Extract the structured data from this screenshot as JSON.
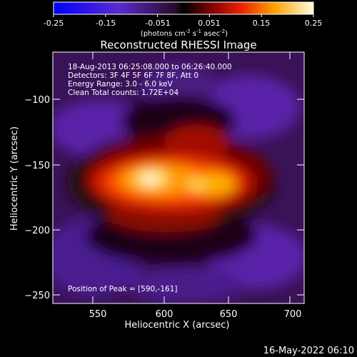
{
  "colorbar": {
    "ticks": [
      "-0.25",
      "-0.15",
      "-0.051",
      "0.051",
      "0.15",
      "0.25"
    ],
    "unit_main": "(photons cm",
    "unit_exp1": "-2",
    "unit_s": " s",
    "unit_exp2": "-1",
    "unit_asec": " asec",
    "unit_exp3": "-2",
    "unit_close": ")",
    "range": [
      -0.25,
      0.25
    ]
  },
  "title": "Reconstructed RHESSI Image",
  "info": {
    "line1": "18-Aug-2013 06:25:08.000 to 06:26:40.000",
    "line2": "Detectors: 3F 4F 5F 6F 7F 8F, Att 0",
    "line3": "Energy Range: 3.0 - 6.0 keV",
    "line4": "Clean     Total counts: 1.72E+04"
  },
  "peak": "Position of Peak = [590,-161]",
  "axes": {
    "xlabel": "Heliocentric X (arcsec)",
    "ylabel": "Heliocentric Y (arcsec)",
    "xticks": [
      "550",
      "600",
      "650",
      "700"
    ],
    "yticks": [
      "−100",
      "−150",
      "−200",
      "−250"
    ],
    "xlim": [
      515,
      710
    ],
    "ylim": [
      -265,
      -70
    ]
  },
  "timestamp": "16-May-2022 06:10"
}
